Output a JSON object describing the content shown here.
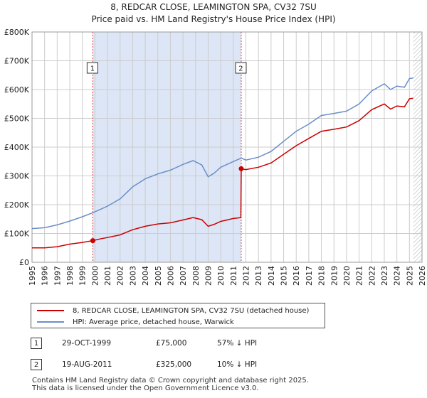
{
  "title": "8, REDCAR CLOSE, LEAMINGTON SPA, CV32 7SU",
  "subtitle": "Price paid vs. HM Land Registry's House Price Index (HPI)",
  "colors": {
    "property": "#cc0000",
    "hpi": "#6a8fc8",
    "shade": "#dde6f6",
    "grid": "#cccccc",
    "marker_line": "#dd4444"
  },
  "chart_data": {
    "type": "line",
    "title": "8, REDCAR CLOSE, LEAMINGTON SPA, CV32 7SU",
    "subtitle": "Price paid vs. HM Land Registry's House Price Index (HPI)",
    "xlabel": "",
    "ylabel": "",
    "xlim": [
      1995,
      2026
    ],
    "ylim": [
      0,
      800000
    ],
    "x_ticks": [
      "1995",
      "1996",
      "1997",
      "1998",
      "1999",
      "2000",
      "2001",
      "2002",
      "2003",
      "2004",
      "2005",
      "2006",
      "2007",
      "2008",
      "2009",
      "2010",
      "2011",
      "2012",
      "2013",
      "2014",
      "2015",
      "2016",
      "2017",
      "2018",
      "2019",
      "2020",
      "2021",
      "2022",
      "2023",
      "2024",
      "2025",
      "2026"
    ],
    "y_ticks": [
      {
        "value": 0,
        "label": "£0"
      },
      {
        "value": 100000,
        "label": "£100K"
      },
      {
        "value": 200000,
        "label": "£200K"
      },
      {
        "value": 300000,
        "label": "£300K"
      },
      {
        "value": 400000,
        "label": "£400K"
      },
      {
        "value": 500000,
        "label": "£500K"
      },
      {
        "value": 600000,
        "label": "£600K"
      },
      {
        "value": 700000,
        "label": "£700K"
      },
      {
        "value": 800000,
        "label": "£800K"
      }
    ],
    "grid": true,
    "shaded_range": [
      1999.83,
      2011.63
    ],
    "hatched_from": 2025.3,
    "series": [
      {
        "name": "8, REDCAR CLOSE, LEAMINGTON SPA, CV32 7SU (detached house)",
        "color": "#cc0000",
        "points": [
          [
            1995.0,
            50000
          ],
          [
            1996.0,
            50000
          ],
          [
            1997.0,
            54000
          ],
          [
            1998.0,
            63000
          ],
          [
            1999.0,
            69000
          ],
          [
            1999.83,
            75000
          ],
          [
            2000.5,
            82000
          ],
          [
            2001.0,
            86000
          ],
          [
            2002.0,
            95000
          ],
          [
            2003.0,
            113000
          ],
          [
            2004.0,
            125000
          ],
          [
            2005.0,
            133000
          ],
          [
            2006.0,
            137000
          ],
          [
            2007.0,
            147000
          ],
          [
            2007.8,
            155000
          ],
          [
            2008.5,
            148000
          ],
          [
            2009.0,
            125000
          ],
          [
            2009.5,
            132000
          ],
          [
            2010.0,
            142000
          ],
          [
            2010.5,
            147000
          ],
          [
            2011.0,
            152000
          ],
          [
            2011.6,
            155000
          ],
          [
            2011.63,
            325000
          ],
          [
            2012.0,
            322000
          ],
          [
            2013.0,
            330000
          ],
          [
            2014.0,
            345000
          ],
          [
            2015.0,
            375000
          ],
          [
            2016.0,
            405000
          ],
          [
            2017.0,
            430000
          ],
          [
            2018.0,
            455000
          ],
          [
            2019.0,
            462000
          ],
          [
            2020.0,
            470000
          ],
          [
            2021.0,
            492000
          ],
          [
            2022.0,
            530000
          ],
          [
            2023.0,
            550000
          ],
          [
            2023.5,
            532000
          ],
          [
            2024.0,
            543000
          ],
          [
            2024.6,
            540000
          ],
          [
            2025.0,
            568000
          ],
          [
            2025.3,
            570000
          ]
        ]
      },
      {
        "name": "HPI: Average price, detached house, Warwick",
        "color": "#6a8fc8",
        "points": [
          [
            1995.0,
            117000
          ],
          [
            1996.0,
            120000
          ],
          [
            1997.0,
            130000
          ],
          [
            1998.0,
            143000
          ],
          [
            1999.0,
            158000
          ],
          [
            1999.83,
            172000
          ],
          [
            2000.5,
            185000
          ],
          [
            2001.0,
            195000
          ],
          [
            2002.0,
            220000
          ],
          [
            2003.0,
            262000
          ],
          [
            2004.0,
            290000
          ],
          [
            2005.0,
            307000
          ],
          [
            2006.0,
            320000
          ],
          [
            2007.0,
            340000
          ],
          [
            2007.8,
            353000
          ],
          [
            2008.5,
            338000
          ],
          [
            2009.0,
            297000
          ],
          [
            2009.5,
            310000
          ],
          [
            2010.0,
            330000
          ],
          [
            2010.5,
            340000
          ],
          [
            2011.0,
            350000
          ],
          [
            2011.63,
            362000
          ],
          [
            2012.0,
            355000
          ],
          [
            2013.0,
            365000
          ],
          [
            2014.0,
            385000
          ],
          [
            2015.0,
            420000
          ],
          [
            2016.0,
            455000
          ],
          [
            2017.0,
            480000
          ],
          [
            2018.0,
            510000
          ],
          [
            2019.0,
            517000
          ],
          [
            2020.0,
            525000
          ],
          [
            2021.0,
            550000
          ],
          [
            2022.0,
            595000
          ],
          [
            2023.0,
            620000
          ],
          [
            2023.5,
            600000
          ],
          [
            2024.0,
            612000
          ],
          [
            2024.6,
            608000
          ],
          [
            2025.0,
            638000
          ],
          [
            2025.3,
            640000
          ]
        ]
      }
    ],
    "sales": [
      {
        "label": "1",
        "x": 1999.83,
        "value": 75000
      },
      {
        "label": "2",
        "x": 2011.63,
        "value": 325000
      }
    ]
  },
  "legend": {
    "property_label": "8, REDCAR CLOSE, LEAMINGTON SPA, CV32 7SU (detached house)",
    "hpi_label": "HPI: Average price, detached house, Warwick"
  },
  "sales_table": [
    {
      "num": "1",
      "date": "29-OCT-1999",
      "price": "£75,000",
      "hpi": "57% ↓ HPI"
    },
    {
      "num": "2",
      "date": "19-AUG-2011",
      "price": "£325,000",
      "hpi": "10% ↓ HPI"
    }
  ],
  "footer": {
    "line1": "Contains HM Land Registry data © Crown copyright and database right 2025.",
    "line2": "This data is licensed under the Open Government Licence v3.0."
  }
}
